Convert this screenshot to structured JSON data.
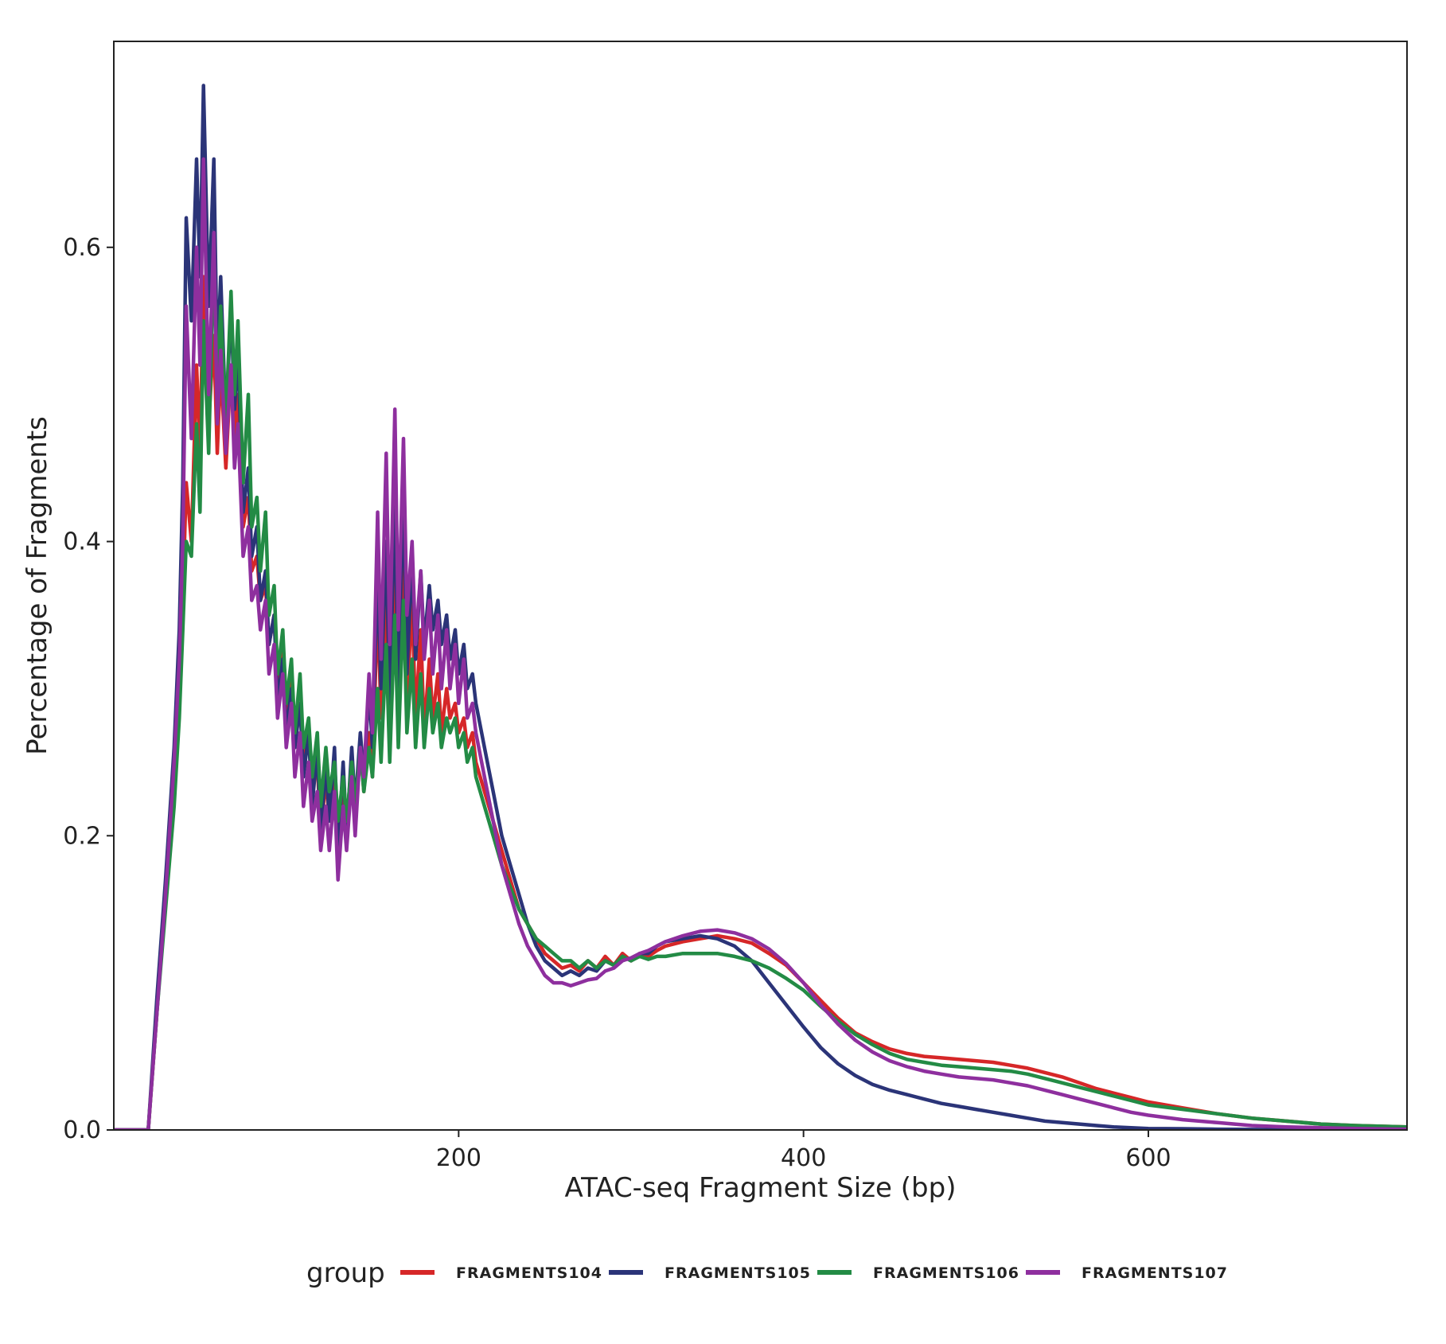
{
  "chart_data": {
    "type": "line",
    "xlabel": "ATAC-seq Fragment Size (bp)",
    "ylabel": "Percentage of Fragments",
    "xlim": [
      0,
      750
    ],
    "ylim": [
      0,
      0.74
    ],
    "xticks": [
      200,
      400,
      600
    ],
    "yticks": [
      0.0,
      0.2,
      0.4,
      0.6
    ],
    "xtick_labels": [
      "200",
      "400",
      "600"
    ],
    "ytick_labels": [
      "0.0",
      "0.2",
      "0.4",
      "0.6"
    ],
    "grid": false,
    "legend": {
      "position": "bottom",
      "title": "group"
    },
    "series": [
      {
        "name": "FRAGMENTS104",
        "color": "#d62728",
        "x": [
          0,
          18,
          20,
          25,
          30,
          35,
          38,
          40,
          42,
          45,
          48,
          50,
          52,
          55,
          58,
          60,
          62,
          65,
          68,
          70,
          72,
          75,
          78,
          80,
          83,
          85,
          88,
          90,
          93,
          95,
          98,
          100,
          103,
          105,
          108,
          110,
          113,
          115,
          118,
          120,
          123,
          125,
          128,
          130,
          133,
          135,
          138,
          140,
          143,
          145,
          148,
          150,
          153,
          155,
          158,
          160,
          163,
          165,
          168,
          170,
          173,
          175,
          178,
          180,
          183,
          185,
          188,
          190,
          193,
          195,
          198,
          200,
          203,
          205,
          208,
          210,
          215,
          220,
          225,
          230,
          235,
          240,
          245,
          250,
          255,
          260,
          265,
          270,
          275,
          280,
          285,
          290,
          295,
          300,
          305,
          310,
          315,
          320,
          330,
          340,
          350,
          360,
          370,
          380,
          390,
          400,
          410,
          420,
          430,
          440,
          450,
          460,
          470,
          480,
          490,
          500,
          510,
          520,
          530,
          540,
          550,
          560,
          570,
          580,
          590,
          600,
          620,
          640,
          660,
          680,
          700,
          720,
          750
        ],
        "y": [
          0.0,
          0.0,
          0.0,
          0.08,
          0.16,
          0.24,
          0.3,
          0.36,
          0.44,
          0.4,
          0.52,
          0.46,
          0.58,
          0.48,
          0.54,
          0.46,
          0.52,
          0.45,
          0.52,
          0.47,
          0.5,
          0.41,
          0.43,
          0.38,
          0.39,
          0.36,
          0.37,
          0.33,
          0.35,
          0.3,
          0.33,
          0.28,
          0.31,
          0.26,
          0.29,
          0.25,
          0.27,
          0.23,
          0.25,
          0.2,
          0.24,
          0.21,
          0.25,
          0.19,
          0.24,
          0.2,
          0.25,
          0.21,
          0.26,
          0.23,
          0.27,
          0.24,
          0.36,
          0.28,
          0.37,
          0.27,
          0.4,
          0.28,
          0.41,
          0.29,
          0.36,
          0.28,
          0.34,
          0.27,
          0.32,
          0.28,
          0.31,
          0.27,
          0.3,
          0.28,
          0.29,
          0.27,
          0.28,
          0.26,
          0.27,
          0.25,
          0.23,
          0.21,
          0.19,
          0.17,
          0.15,
          0.14,
          0.13,
          0.12,
          0.115,
          0.11,
          0.112,
          0.108,
          0.115,
          0.11,
          0.118,
          0.112,
          0.12,
          0.115,
          0.12,
          0.118,
          0.122,
          0.125,
          0.128,
          0.13,
          0.132,
          0.13,
          0.127,
          0.12,
          0.112,
          0.1,
          0.088,
          0.076,
          0.066,
          0.06,
          0.055,
          0.052,
          0.05,
          0.049,
          0.048,
          0.047,
          0.046,
          0.044,
          0.042,
          0.039,
          0.036,
          0.032,
          0.028,
          0.025,
          0.022,
          0.019,
          0.015,
          0.011,
          0.008,
          0.006,
          0.004,
          0.003,
          0.002
        ]
      },
      {
        "name": "FRAGMENTS105",
        "color": "#2b3478",
        "x": [
          0,
          18,
          20,
          25,
          30,
          35,
          38,
          40,
          42,
          45,
          48,
          50,
          52,
          55,
          58,
          60,
          62,
          65,
          68,
          70,
          72,
          75,
          78,
          80,
          83,
          85,
          88,
          90,
          93,
          95,
          98,
          100,
          103,
          105,
          108,
          110,
          113,
          115,
          118,
          120,
          123,
          125,
          128,
          130,
          133,
          135,
          138,
          140,
          143,
          145,
          148,
          150,
          153,
          155,
          158,
          160,
          163,
          165,
          168,
          170,
          173,
          175,
          178,
          180,
          183,
          185,
          188,
          190,
          193,
          195,
          198,
          200,
          203,
          205,
          208,
          210,
          215,
          220,
          225,
          230,
          235,
          240,
          245,
          250,
          255,
          260,
          265,
          270,
          275,
          280,
          285,
          290,
          295,
          300,
          305,
          310,
          315,
          320,
          330,
          340,
          350,
          360,
          370,
          380,
          390,
          400,
          410,
          420,
          430,
          440,
          450,
          460,
          470,
          480,
          490,
          500,
          510,
          520,
          530,
          540,
          550,
          560,
          570,
          580,
          590,
          600,
          620,
          640,
          660,
          680,
          700,
          720,
          750
        ],
        "y": [
          0.0,
          0.0,
          0.0,
          0.09,
          0.17,
          0.26,
          0.34,
          0.44,
          0.62,
          0.55,
          0.66,
          0.58,
          0.71,
          0.56,
          0.66,
          0.52,
          0.58,
          0.48,
          0.56,
          0.49,
          0.53,
          0.42,
          0.45,
          0.39,
          0.41,
          0.36,
          0.38,
          0.33,
          0.35,
          0.29,
          0.32,
          0.27,
          0.3,
          0.26,
          0.29,
          0.24,
          0.27,
          0.22,
          0.26,
          0.2,
          0.25,
          0.21,
          0.26,
          0.19,
          0.25,
          0.2,
          0.26,
          0.22,
          0.27,
          0.24,
          0.3,
          0.26,
          0.38,
          0.3,
          0.4,
          0.29,
          0.43,
          0.3,
          0.44,
          0.31,
          0.39,
          0.32,
          0.38,
          0.33,
          0.37,
          0.34,
          0.36,
          0.33,
          0.35,
          0.32,
          0.34,
          0.31,
          0.33,
          0.3,
          0.31,
          0.29,
          0.26,
          0.23,
          0.2,
          0.18,
          0.16,
          0.14,
          0.125,
          0.115,
          0.11,
          0.105,
          0.108,
          0.105,
          0.11,
          0.108,
          0.115,
          0.112,
          0.118,
          0.115,
          0.12,
          0.12,
          0.125,
          0.128,
          0.13,
          0.132,
          0.13,
          0.125,
          0.115,
          0.1,
          0.085,
          0.07,
          0.056,
          0.045,
          0.037,
          0.031,
          0.027,
          0.024,
          0.021,
          0.018,
          0.016,
          0.014,
          0.012,
          0.01,
          0.008,
          0.006,
          0.005,
          0.004,
          0.003,
          0.002,
          0.0015,
          0.001,
          0.0008,
          0.0005,
          0.0003,
          0.0002,
          0.0001,
          0.0,
          0.0
        ]
      },
      {
        "name": "FRAGMENTS106",
        "color": "#238b45",
        "x": [
          0,
          18,
          20,
          25,
          30,
          35,
          38,
          40,
          42,
          45,
          48,
          50,
          52,
          55,
          58,
          60,
          62,
          65,
          68,
          70,
          72,
          75,
          78,
          80,
          83,
          85,
          88,
          90,
          93,
          95,
          98,
          100,
          103,
          105,
          108,
          110,
          113,
          115,
          118,
          120,
          123,
          125,
          128,
          130,
          133,
          135,
          138,
          140,
          143,
          145,
          148,
          150,
          153,
          155,
          158,
          160,
          163,
          165,
          168,
          170,
          173,
          175,
          178,
          180,
          183,
          185,
          188,
          190,
          193,
          195,
          198,
          200,
          203,
          205,
          208,
          210,
          215,
          220,
          225,
          230,
          235,
          240,
          245,
          250,
          255,
          260,
          265,
          270,
          275,
          280,
          285,
          290,
          295,
          300,
          305,
          310,
          315,
          320,
          330,
          340,
          350,
          360,
          370,
          380,
          390,
          400,
          410,
          420,
          430,
          440,
          450,
          460,
          470,
          480,
          490,
          500,
          510,
          520,
          530,
          540,
          550,
          560,
          570,
          580,
          590,
          600,
          620,
          640,
          660,
          680,
          700,
          720,
          750
        ],
        "y": [
          0.0,
          0.0,
          0.0,
          0.08,
          0.15,
          0.22,
          0.28,
          0.34,
          0.4,
          0.39,
          0.48,
          0.42,
          0.55,
          0.46,
          0.6,
          0.5,
          0.56,
          0.48,
          0.57,
          0.5,
          0.55,
          0.44,
          0.5,
          0.41,
          0.43,
          0.38,
          0.42,
          0.35,
          0.37,
          0.31,
          0.34,
          0.29,
          0.32,
          0.27,
          0.31,
          0.26,
          0.28,
          0.24,
          0.27,
          0.22,
          0.26,
          0.23,
          0.25,
          0.21,
          0.24,
          0.21,
          0.25,
          0.22,
          0.26,
          0.23,
          0.26,
          0.24,
          0.3,
          0.25,
          0.33,
          0.25,
          0.35,
          0.26,
          0.36,
          0.27,
          0.32,
          0.26,
          0.31,
          0.26,
          0.3,
          0.27,
          0.29,
          0.26,
          0.28,
          0.27,
          0.28,
          0.26,
          0.27,
          0.25,
          0.26,
          0.24,
          0.22,
          0.2,
          0.18,
          0.165,
          0.15,
          0.14,
          0.13,
          0.125,
          0.12,
          0.115,
          0.115,
          0.11,
          0.115,
          0.11,
          0.115,
          0.112,
          0.118,
          0.115,
          0.118,
          0.116,
          0.118,
          0.118,
          0.12,
          0.12,
          0.12,
          0.118,
          0.115,
          0.11,
          0.103,
          0.095,
          0.084,
          0.074,
          0.065,
          0.058,
          0.052,
          0.048,
          0.046,
          0.044,
          0.043,
          0.042,
          0.041,
          0.04,
          0.038,
          0.035,
          0.032,
          0.029,
          0.026,
          0.023,
          0.02,
          0.017,
          0.014,
          0.011,
          0.008,
          0.006,
          0.004,
          0.003,
          0.002
        ]
      },
      {
        "name": "FRAGMENTS107",
        "color": "#8e2f9e",
        "x": [
          0,
          18,
          20,
          25,
          30,
          35,
          38,
          40,
          42,
          45,
          48,
          50,
          52,
          55,
          58,
          60,
          62,
          65,
          68,
          70,
          72,
          75,
          78,
          80,
          83,
          85,
          88,
          90,
          93,
          95,
          98,
          100,
          103,
          105,
          108,
          110,
          113,
          115,
          118,
          120,
          123,
          125,
          128,
          130,
          133,
          135,
          138,
          140,
          143,
          145,
          148,
          150,
          153,
          155,
          158,
          160,
          163,
          165,
          168,
          170,
          173,
          175,
          178,
          180,
          183,
          185,
          188,
          190,
          193,
          195,
          198,
          200,
          203,
          205,
          208,
          210,
          215,
          220,
          225,
          230,
          235,
          240,
          245,
          250,
          255,
          260,
          265,
          270,
          275,
          280,
          285,
          290,
          295,
          300,
          305,
          310,
          315,
          320,
          330,
          340,
          350,
          360,
          370,
          380,
          390,
          400,
          410,
          420,
          430,
          440,
          450,
          460,
          470,
          480,
          490,
          500,
          510,
          520,
          530,
          540,
          550,
          560,
          570,
          580,
          590,
          600,
          620,
          640,
          660,
          680,
          700,
          720,
          750
        ],
        "y": [
          0.0,
          0.0,
          0.0,
          0.08,
          0.16,
          0.25,
          0.32,
          0.4,
          0.56,
          0.47,
          0.6,
          0.52,
          0.66,
          0.5,
          0.61,
          0.48,
          0.53,
          0.46,
          0.52,
          0.45,
          0.48,
          0.39,
          0.41,
          0.36,
          0.37,
          0.34,
          0.36,
          0.31,
          0.33,
          0.28,
          0.31,
          0.26,
          0.29,
          0.24,
          0.27,
          0.22,
          0.25,
          0.21,
          0.23,
          0.19,
          0.22,
          0.19,
          0.23,
          0.17,
          0.22,
          0.19,
          0.24,
          0.2,
          0.26,
          0.24,
          0.31,
          0.27,
          0.42,
          0.32,
          0.46,
          0.33,
          0.49,
          0.34,
          0.47,
          0.35,
          0.4,
          0.33,
          0.38,
          0.32,
          0.36,
          0.31,
          0.35,
          0.3,
          0.34,
          0.3,
          0.33,
          0.29,
          0.32,
          0.28,
          0.29,
          0.27,
          0.24,
          0.21,
          0.18,
          0.16,
          0.14,
          0.125,
          0.115,
          0.105,
          0.1,
          0.1,
          0.098,
          0.1,
          0.102,
          0.103,
          0.108,
          0.11,
          0.115,
          0.117,
          0.12,
          0.122,
          0.125,
          0.128,
          0.132,
          0.135,
          0.136,
          0.134,
          0.13,
          0.123,
          0.113,
          0.1,
          0.085,
          0.072,
          0.061,
          0.053,
          0.047,
          0.043,
          0.04,
          0.038,
          0.036,
          0.035,
          0.034,
          0.032,
          0.03,
          0.027,
          0.024,
          0.021,
          0.018,
          0.015,
          0.012,
          0.01,
          0.007,
          0.005,
          0.003,
          0.002,
          0.0015,
          0.001,
          0.0005
        ]
      }
    ]
  }
}
